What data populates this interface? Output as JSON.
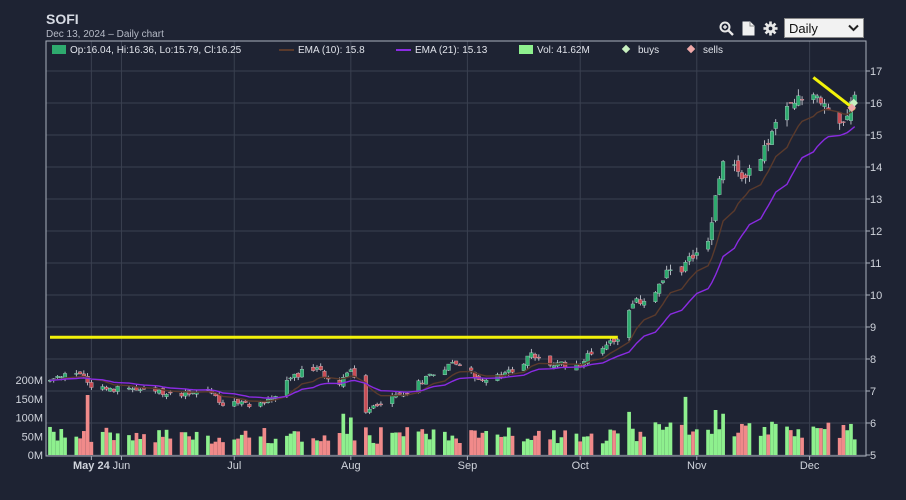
{
  "app": {
    "symbol": "SOFI",
    "subtitle": "Dec 13, 2024 – Daily chart",
    "period": "Daily",
    "icons": [
      "zoom-icon",
      "document-icon",
      "gear-icon"
    ]
  },
  "legend": {
    "ohlc": "Op:16.04, Hi:16.36, Lo:15.79, Cl:16.25",
    "ema10": "EMA (10): 15.8",
    "ema21": "EMA (21): 15.13",
    "vol": "Vol: 41.62M",
    "buys": "buys",
    "sells": "sells"
  },
  "colors": {
    "background": "#1e2333",
    "up": "#2eaa6e",
    "down": "#c94d55",
    "ema10": "#5a3a2c",
    "ema21": "#8a2be2",
    "vol_up": "#8ef08e",
    "vol_down": "#f08a8a",
    "trendline": "#f2f20a",
    "buys": "#c8f0c0",
    "sells": "#f0a8a8"
  },
  "chart_data": {
    "type": "candlestick",
    "x_tick_labels": [
      "May 24",
      "Jun",
      "Jul",
      "Aug",
      "Sep",
      "Oct",
      "Nov",
      "Dec"
    ],
    "y_ticks": [
      5,
      6,
      7,
      8,
      9,
      10,
      11,
      12,
      13,
      14,
      15,
      16,
      17
    ],
    "ylim": [
      5,
      17.5
    ],
    "volume_ticks": [
      "0M",
      "50M",
      "100M",
      "150M",
      "200M"
    ],
    "volume_ylim": [
      0,
      200
    ],
    "anchors": [
      {
        "date": "2024-05-13",
        "close": 7.3
      },
      {
        "date": "2024-05-20",
        "close": 7.6
      },
      {
        "date": "2024-05-22",
        "close": 7.5
      },
      {
        "date": "2024-05-24",
        "close": 7.15
      },
      {
        "date": "2024-06-03",
        "close": 7.05
      },
      {
        "date": "2024-06-14",
        "close": 6.9
      },
      {
        "date": "2024-06-24",
        "close": 7.05
      },
      {
        "date": "2024-06-28",
        "close": 6.6
      },
      {
        "date": "2024-07-08",
        "close": 6.6
      },
      {
        "date": "2024-07-12",
        "close": 6.85
      },
      {
        "date": "2024-07-17",
        "close": 7.5
      },
      {
        "date": "2024-07-22",
        "close": 7.7
      },
      {
        "date": "2024-07-29",
        "close": 7.3
      },
      {
        "date": "2024-08-01",
        "close": 7.65
      },
      {
        "date": "2024-08-05",
        "close": 6.3
      },
      {
        "date": "2024-08-08",
        "close": 6.6
      },
      {
        "date": "2024-08-16",
        "close": 7.0
      },
      {
        "date": "2024-08-23",
        "close": 7.6
      },
      {
        "date": "2024-08-29",
        "close": 7.9
      },
      {
        "date": "2024-09-05",
        "close": 7.3
      },
      {
        "date": "2024-09-11",
        "close": 7.5
      },
      {
        "date": "2024-09-18",
        "close": 8.1
      },
      {
        "date": "2024-09-24",
        "close": 7.8
      },
      {
        "date": "2024-10-01",
        "close": 7.85
      },
      {
        "date": "2024-10-04",
        "close": 8.2
      },
      {
        "date": "2024-10-11",
        "close": 8.7
      },
      {
        "date": "2024-10-14",
        "close": 9.6
      },
      {
        "date": "2024-10-21",
        "close": 10.1
      },
      {
        "date": "2024-10-25",
        "close": 10.8
      },
      {
        "date": "2024-10-29",
        "close": 10.9
      },
      {
        "date": "2024-11-04",
        "close": 11.8
      },
      {
        "date": "2024-11-06",
        "close": 13.0
      },
      {
        "date": "2024-11-08",
        "close": 14.2
      },
      {
        "date": "2024-11-13",
        "close": 13.7
      },
      {
        "date": "2024-11-18",
        "close": 14.3
      },
      {
        "date": "2024-11-22",
        "close": 15.3
      },
      {
        "date": "2024-11-27",
        "close": 16.0
      },
      {
        "date": "2024-12-02",
        "close": 16.4
      },
      {
        "date": "2024-12-05",
        "close": 15.8
      },
      {
        "date": "2024-12-10",
        "close": 15.5
      },
      {
        "date": "2024-12-13",
        "close": 16.25
      }
    ],
    "last_candle": {
      "date": "2024-12-13",
      "open": 16.04,
      "high": 16.36,
      "low": 15.79,
      "close": 16.25,
      "volume": 41.62
    },
    "ema10_last": 15.8,
    "ema21_last": 15.13,
    "volume_spikes": [
      {
        "date": "2024-05-23",
        "volume": 160
      },
      {
        "date": "2024-07-30",
        "volume": 110
      },
      {
        "date": "2024-08-01",
        "volume": 100
      },
      {
        "date": "2024-10-14",
        "volume": 115
      },
      {
        "date": "2024-10-29",
        "volume": 155
      },
      {
        "date": "2024-11-06",
        "volume": 120
      },
      {
        "date": "2024-11-08",
        "volume": 110
      }
    ],
    "annotations": {
      "horizontal_trendline": {
        "start": "2024-05-13",
        "end": "2024-10-11",
        "price": 8.68
      },
      "down_trendline": {
        "start": "2024-12-02",
        "end": "2024-12-13",
        "price_start": 16.8,
        "price_end": 15.8
      },
      "buys": [
        {
          "date": "2024-12-13",
          "price": 16.0
        }
      ],
      "sells": [
        {
          "date": "2024-12-13",
          "price": 15.85
        }
      ]
    }
  }
}
